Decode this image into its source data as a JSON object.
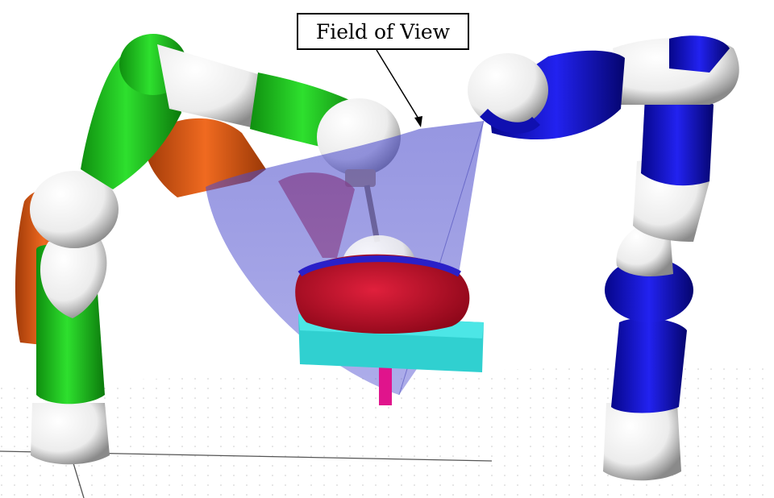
{
  "annotation": {
    "label": "Field of View"
  },
  "colors": {
    "green_arm": "#1fc81f",
    "orange_arm": "#e0631c",
    "blue_arm": "#1414d8",
    "white_links": "#f2f2f2",
    "fov_cone": "#5a5ad2",
    "tool_cone": "#c8323c",
    "workpiece": "#b4102a",
    "table": "#30d0d0",
    "post": "#e0148c"
  },
  "icons": {
    "green_robot": "robot-arm-icon",
    "blue_robot": "robot-arm-icon"
  }
}
